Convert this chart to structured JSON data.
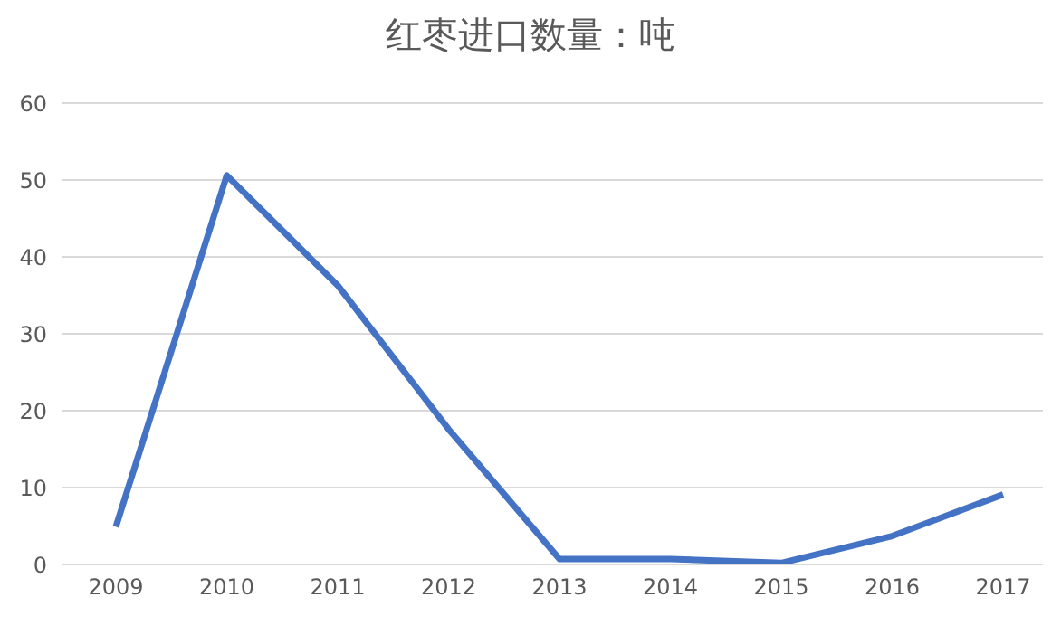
{
  "chart_data": {
    "type": "line",
    "title": "红枣进口数量：吨",
    "categories": [
      "2009",
      "2010",
      "2011",
      "2012",
      "2013",
      "2014",
      "2015",
      "2016",
      "2017"
    ],
    "series": [
      {
        "color": "#4472c4",
        "values": [
          4.9,
          50.6,
          36.3,
          17.6,
          0.7,
          0.7,
          0.2,
          3.7,
          9.1
        ]
      }
    ],
    "ylim": [
      0,
      60
    ],
    "yticks": [
      0,
      10,
      20,
      30,
      40,
      50,
      60
    ],
    "grid": "y",
    "legend": false,
    "marker": "none",
    "line_style": "solid"
  }
}
